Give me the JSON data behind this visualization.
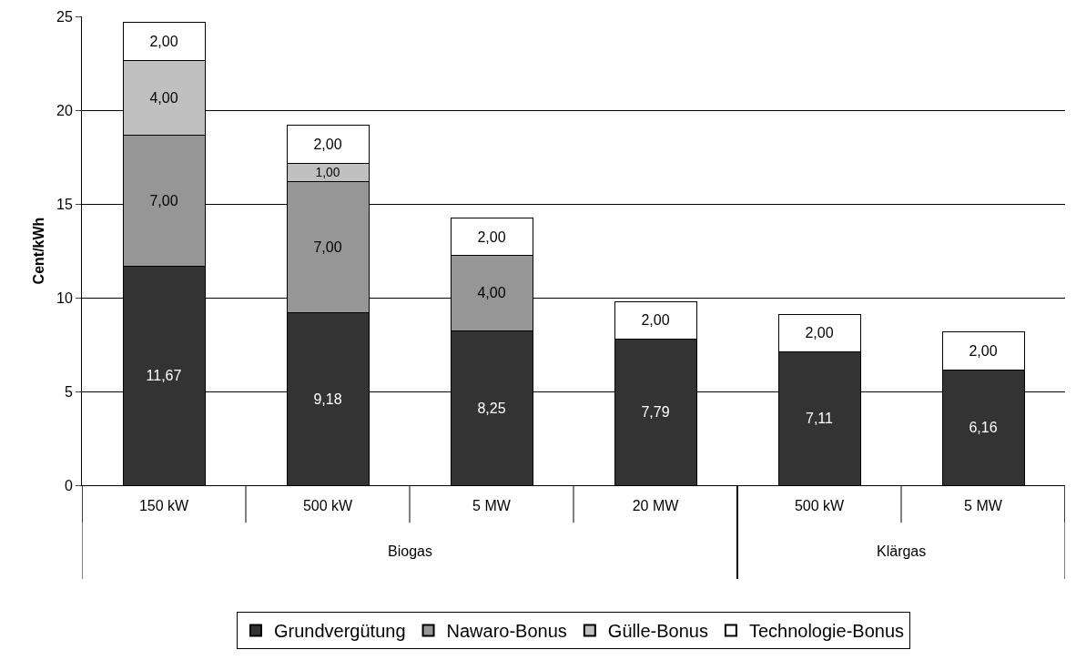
{
  "chart_data": {
    "type": "bar",
    "stacked": true,
    "ylabel": "Cent/kWh",
    "categories": [
      "150 kW",
      "500 kW",
      "5 MW",
      "20 MW",
      "500 kW",
      "5 MW"
    ],
    "series": [
      {
        "name": "Grundvergütung",
        "color": "#333333",
        "values": [
          11.67,
          9.18,
          8.25,
          7.79,
          7.11,
          6.16
        ],
        "value_labels": [
          "11,67",
          "9,18",
          "8,25",
          "7,79",
          "7,11",
          "6,16"
        ]
      },
      {
        "name": "Nawaro-Bonus",
        "color": "#969696",
        "values": [
          7,
          7,
          4,
          null,
          null,
          null
        ],
        "value_labels": [
          "7,00",
          "7,00",
          "4,00",
          null,
          null,
          null
        ]
      },
      {
        "name": "Gülle-Bonus",
        "color": "#c0c0c0",
        "values": [
          4,
          1,
          null,
          null,
          null,
          null
        ],
        "value_labels": [
          "4,00",
          "1,00",
          null,
          null,
          null,
          null
        ]
      },
      {
        "name": "Technologie-Bonus",
        "color": "#ffffff",
        "values": [
          2,
          2,
          2,
          2,
          2,
          2
        ],
        "value_labels": [
          "2,00",
          "2,00",
          "2,00",
          "2,00",
          "2,00",
          "2,00"
        ]
      }
    ],
    "annotations": [
      "Biogas",
      "Klärgas"
    ],
    "ylim": [
      0,
      25
    ],
    "yticks": [
      0,
      5,
      10,
      15,
      20,
      25
    ],
    "grid": "y",
    "legend": "bottom"
  }
}
